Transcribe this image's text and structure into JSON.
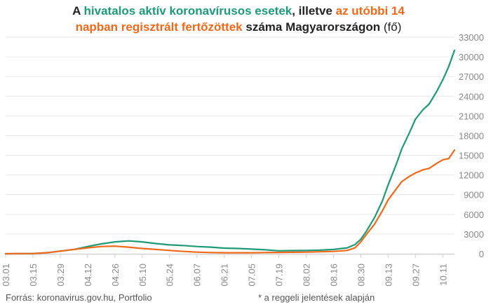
{
  "title": {
    "line1_a": "A ",
    "line1_green": "hivatalos aktív koronavírusos esetek",
    "line1_b": ", illetve ",
    "line1_orange": "az utóbbi 14",
    "line2_orange": "napban regisztrált fertőzöttek",
    "line2_b": " száma Magyarországon ",
    "line2_unit": "(fő)"
  },
  "footer": {
    "source": "Forrás: koronavirus.gov.hu, Portfolio",
    "note": "* a reggeli jelentések alapján"
  },
  "colors": {
    "active": "#1e9a78",
    "cases14": "#ee6a1a",
    "grid": "#e6e6e6",
    "axis_text": "#888888"
  },
  "chart_data": {
    "type": "line",
    "title": "A hivatalos aktív koronavírusos esetek, illetve az utóbbi 14 napban regisztrált fertőzöttek száma Magyarországon (fő)",
    "x_tick_labels": [
      "03.01",
      "03.15",
      "03.29",
      "04.12",
      "04.26",
      "05.10",
      "05.24",
      "06.07",
      "06.21",
      "07.05",
      "07.19",
      "08.02",
      "08.16",
      "08.30",
      "09.13",
      "09.27",
      "10.11"
    ],
    "y_ticks": [
      0,
      3000,
      6000,
      9000,
      12000,
      15000,
      18000,
      21000,
      24000,
      27000,
      30000,
      33000
    ],
    "ylim": [
      0,
      33000
    ],
    "x_range": [
      "03.01",
      "10.17"
    ],
    "grid": true,
    "y_axis_side": "right",
    "series": [
      {
        "key": "active",
        "color": "#1e9a78",
        "points": [
          [
            "03.01",
            0
          ],
          [
            "03.15",
            30
          ],
          [
            "03.22",
            150
          ],
          [
            "03.29",
            400
          ],
          [
            "04.05",
            650
          ],
          [
            "04.12",
            1100
          ],
          [
            "04.19",
            1500
          ],
          [
            "04.26",
            1800
          ],
          [
            "05.03",
            1950
          ],
          [
            "05.10",
            1800
          ],
          [
            "05.17",
            1550
          ],
          [
            "05.24",
            1350
          ],
          [
            "05.31",
            1250
          ],
          [
            "06.07",
            1100
          ],
          [
            "06.14",
            1000
          ],
          [
            "06.21",
            850
          ],
          [
            "06.28",
            800
          ],
          [
            "07.05",
            700
          ],
          [
            "07.12",
            600
          ],
          [
            "07.19",
            450
          ],
          [
            "07.26",
            480
          ],
          [
            "08.02",
            500
          ],
          [
            "08.09",
            550
          ],
          [
            "08.16",
            650
          ],
          [
            "08.23",
            900
          ],
          [
            "08.27",
            1400
          ],
          [
            "08.30",
            2200
          ],
          [
            "09.02",
            3500
          ],
          [
            "09.06",
            5500
          ],
          [
            "09.10",
            8000
          ],
          [
            "09.13",
            10500
          ],
          [
            "09.17",
            13500
          ],
          [
            "09.20",
            16000
          ],
          [
            "09.24",
            18500
          ],
          [
            "09.27",
            20500
          ],
          [
            "10.01",
            22000
          ],
          [
            "10.04",
            22800
          ],
          [
            "10.08",
            24800
          ],
          [
            "10.11",
            26500
          ],
          [
            "10.14",
            28500
          ],
          [
            "10.17",
            31000
          ]
        ]
      },
      {
        "key": "cases14",
        "color": "#ee6a1a",
        "points": [
          [
            "03.01",
            0
          ],
          [
            "03.15",
            30
          ],
          [
            "03.22",
            150
          ],
          [
            "03.29",
            400
          ],
          [
            "04.05",
            650
          ],
          [
            "04.12",
            900
          ],
          [
            "04.19",
            1100
          ],
          [
            "04.26",
            1150
          ],
          [
            "05.03",
            1000
          ],
          [
            "05.10",
            800
          ],
          [
            "05.17",
            650
          ],
          [
            "05.24",
            500
          ],
          [
            "05.31",
            350
          ],
          [
            "06.07",
            250
          ],
          [
            "06.14",
            180
          ],
          [
            "06.21",
            150
          ],
          [
            "06.28",
            150
          ],
          [
            "07.05",
            150
          ],
          [
            "07.12",
            180
          ],
          [
            "07.19",
            200
          ],
          [
            "07.26",
            220
          ],
          [
            "08.02",
            250
          ],
          [
            "08.09",
            300
          ],
          [
            "08.16",
            350
          ],
          [
            "08.23",
            500
          ],
          [
            "08.27",
            900
          ],
          [
            "08.30",
            1800
          ],
          [
            "09.02",
            3000
          ],
          [
            "09.06",
            4500
          ],
          [
            "09.10",
            6500
          ],
          [
            "09.13",
            8200
          ],
          [
            "09.17",
            9800
          ],
          [
            "09.20",
            11000
          ],
          [
            "09.24",
            11800
          ],
          [
            "09.27",
            12300
          ],
          [
            "10.01",
            12800
          ],
          [
            "10.04",
            13000
          ],
          [
            "10.08",
            13800
          ],
          [
            "10.11",
            14300
          ],
          [
            "10.14",
            14500
          ],
          [
            "10.17",
            15800
          ]
        ]
      }
    ]
  }
}
